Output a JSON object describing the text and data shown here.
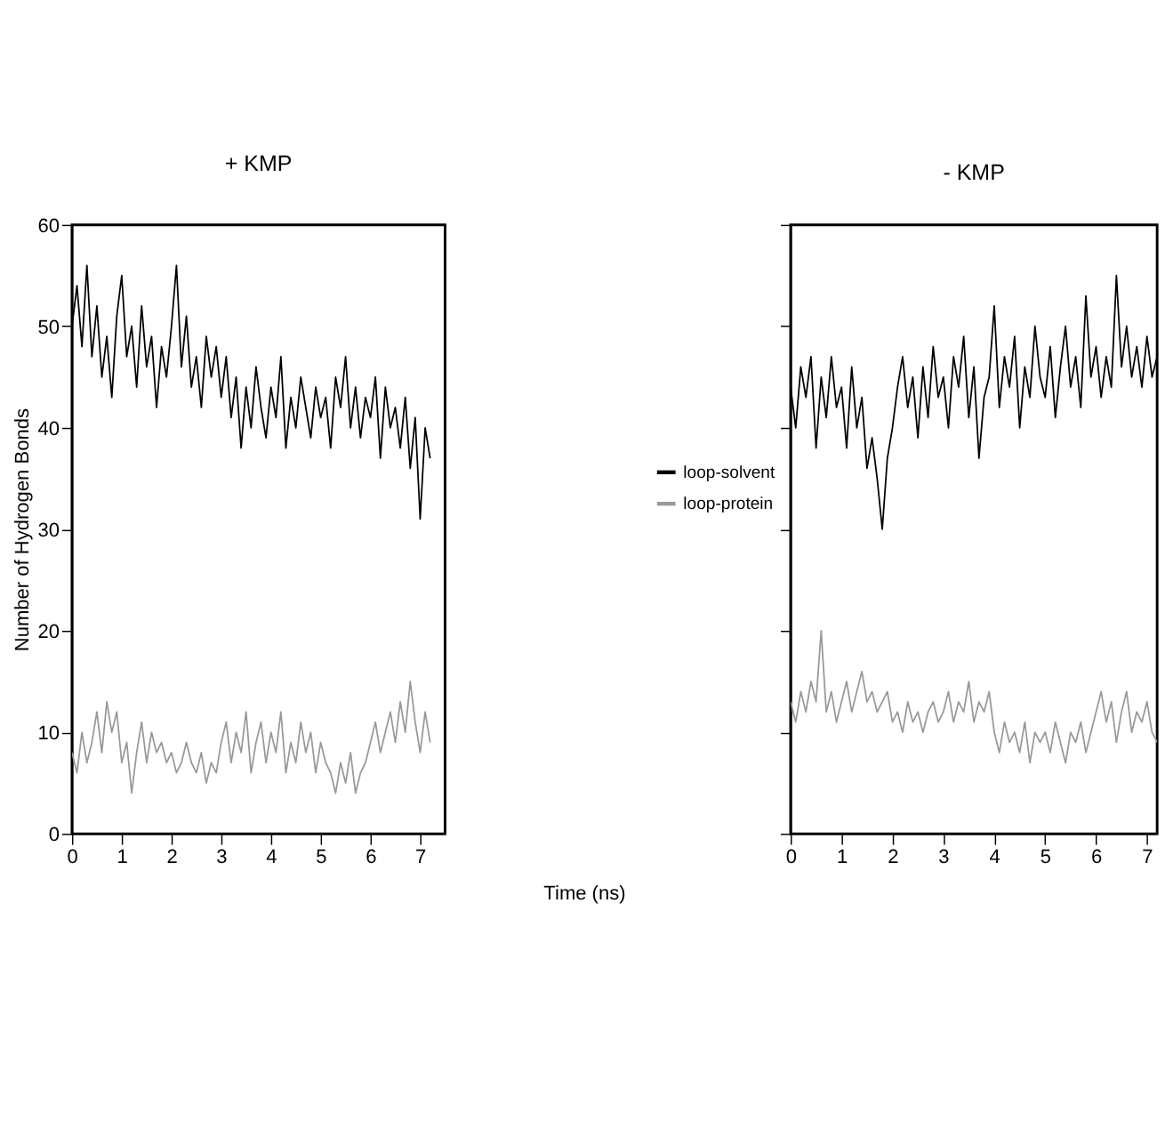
{
  "chart_data": [
    {
      "type": "line",
      "title": "+ KMP",
      "xlabel": "Time (ns)",
      "ylabel": "Number of Hydrogen Bonds",
      "xlim": [
        0,
        7.5
      ],
      "xticks": [
        0,
        1,
        2,
        3,
        4,
        5,
        6,
        7
      ],
      "ylim": [
        0,
        60
      ],
      "yticks": [
        0,
        10,
        20,
        30,
        40,
        50,
        60
      ],
      "grid": false,
      "legend": "right",
      "line_style": "solid",
      "marker": "none",
      "x": [
        0,
        0.1,
        0.2,
        0.3,
        0.4,
        0.5,
        0.6,
        0.7,
        0.8,
        0.9,
        1,
        1.1,
        1.2,
        1.3,
        1.4,
        1.5,
        1.6,
        1.7,
        1.8,
        1.9,
        2,
        2.1,
        2.2,
        2.3,
        2.4,
        2.5,
        2.6,
        2.7,
        2.8,
        2.9,
        3,
        3.1,
        3.2,
        3.3,
        3.4,
        3.5,
        3.6,
        3.7,
        3.8,
        3.9,
        4,
        4.1,
        4.2,
        4.3,
        4.4,
        4.5,
        4.6,
        4.7,
        4.8,
        4.9,
        5,
        5.1,
        5.2,
        5.3,
        5.4,
        5.5,
        5.6,
        5.7,
        5.8,
        5.9,
        6,
        6.1,
        6.2,
        6.3,
        6.4,
        6.5,
        6.6,
        6.7,
        6.8,
        6.9,
        7,
        7.1,
        7.2
      ],
      "series": [
        {
          "name": "loop-solvent",
          "color": "#000000",
          "values": [
            50,
            54,
            48,
            56,
            47,
            52,
            45,
            49,
            43,
            51,
            55,
            47,
            50,
            44,
            52,
            46,
            49,
            42,
            48,
            45,
            50,
            56,
            46,
            51,
            44,
            47,
            42,
            49,
            45,
            48,
            43,
            47,
            41,
            45,
            38,
            44,
            40,
            46,
            42,
            39,
            44,
            41,
            47,
            38,
            43,
            40,
            45,
            42,
            39,
            44,
            41,
            43,
            38,
            45,
            42,
            47,
            40,
            44,
            39,
            43,
            41,
            45,
            37,
            44,
            40,
            42,
            38,
            43,
            36,
            41,
            31,
            40,
            37
          ]
        },
        {
          "name": "loop-protein",
          "color": "#999999",
          "values": [
            8,
            6,
            10,
            7,
            9,
            12,
            8,
            13,
            10,
            12,
            7,
            9,
            4,
            8,
            11,
            7,
            10,
            8,
            9,
            7,
            8,
            6,
            7,
            9,
            7,
            6,
            8,
            5,
            7,
            6,
            9,
            11,
            7,
            10,
            8,
            12,
            6,
            9,
            11,
            7,
            10,
            8,
            12,
            6,
            9,
            7,
            11,
            8,
            10,
            6,
            9,
            7,
            6,
            4,
            7,
            5,
            8,
            4,
            6,
            7,
            9,
            11,
            8,
            10,
            12,
            9,
            13,
            10,
            15,
            11,
            8,
            12,
            9
          ]
        }
      ]
    },
    {
      "type": "line",
      "title": "- KMP",
      "xlim": [
        0,
        7.2
      ],
      "xticks": [
        0,
        1,
        2,
        3,
        4,
        5,
        6,
        7
      ],
      "ylim": [
        0,
        60
      ],
      "yticks": [
        0,
        10,
        20,
        30,
        40,
        50,
        60
      ],
      "tick_labels": "x",
      "grid": false,
      "line_style": "solid",
      "marker": "none",
      "x": [
        0,
        0.1,
        0.2,
        0.3,
        0.4,
        0.5,
        0.6,
        0.7,
        0.8,
        0.9,
        1,
        1.1,
        1.2,
        1.3,
        1.4,
        1.5,
        1.6,
        1.7,
        1.8,
        1.9,
        2,
        2.1,
        2.2,
        2.3,
        2.4,
        2.5,
        2.6,
        2.7,
        2.8,
        2.9,
        3,
        3.1,
        3.2,
        3.3,
        3.4,
        3.5,
        3.6,
        3.7,
        3.8,
        3.9,
        4,
        4.1,
        4.2,
        4.3,
        4.4,
        4.5,
        4.6,
        4.7,
        4.8,
        4.9,
        5,
        5.1,
        5.2,
        5.3,
        5.4,
        5.5,
        5.6,
        5.7,
        5.8,
        5.9,
        6,
        6.1,
        6.2,
        6.3,
        6.4,
        6.5,
        6.6,
        6.7,
        6.8,
        6.9,
        7,
        7.1,
        7.2
      ],
      "series": [
        {
          "color": "#000000",
          "values": [
            44,
            40,
            46,
            43,
            47,
            38,
            45,
            41,
            47,
            42,
            44,
            38,
            46,
            40,
            43,
            36,
            39,
            35,
            30,
            37,
            40,
            44,
            47,
            42,
            45,
            39,
            46,
            41,
            48,
            43,
            45,
            40,
            47,
            44,
            49,
            41,
            46,
            37,
            43,
            45,
            52,
            42,
            47,
            44,
            49,
            40,
            46,
            43,
            50,
            45,
            43,
            48,
            41,
            46,
            50,
            44,
            47,
            42,
            53,
            45,
            48,
            43,
            47,
            44,
            55,
            46,
            50,
            45,
            48,
            44,
            49,
            45,
            47
          ]
        },
        {
          "color": "#999999",
          "values": [
            13,
            11,
            14,
            12,
            15,
            13,
            20,
            12,
            14,
            11,
            13,
            15,
            12,
            14,
            16,
            13,
            14,
            12,
            13,
            14,
            11,
            12,
            10,
            13,
            11,
            12,
            10,
            12,
            13,
            11,
            12,
            14,
            11,
            13,
            12,
            15,
            11,
            13,
            12,
            14,
            10,
            8,
            11,
            9,
            10,
            8,
            11,
            7,
            10,
            9,
            10,
            8,
            11,
            9,
            7,
            10,
            9,
            11,
            8,
            10,
            12,
            14,
            11,
            13,
            9,
            12,
            14,
            10,
            12,
            11,
            13,
            10,
            9
          ]
        }
      ]
    }
  ]
}
